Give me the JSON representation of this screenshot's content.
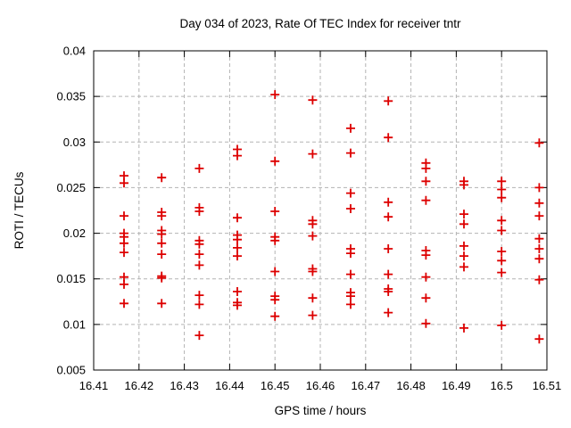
{
  "background_color": "#ffffff",
  "chart_data": {
    "type": "scatter",
    "title": "Day 034 of 2023, Rate Of TEC Index for receiver tntr",
    "xlabel": "GPS time / hours",
    "ylabel": "ROTI / TECUs",
    "xlim": [
      16.41,
      16.51
    ],
    "ylim": [
      0.005,
      0.04
    ],
    "xticks": [
      16.41,
      16.42,
      16.43,
      16.44,
      16.45,
      16.46,
      16.47,
      16.48,
      16.49,
      16.5,
      16.51
    ],
    "xtick_labels": [
      "16.41",
      "16.42",
      "16.43",
      "16.44",
      "16.45",
      "16.46",
      "16.47",
      "16.48",
      "16.49",
      "16.5",
      "16.51"
    ],
    "yticks": [
      0.005,
      0.01,
      0.015,
      0.02,
      0.025,
      0.03,
      0.035,
      0.04
    ],
    "ytick_labels": [
      "0.005",
      "0.01",
      "0.015",
      "0.02",
      "0.025",
      "0.03",
      "0.035",
      "0.04"
    ],
    "grid": true,
    "legend": "none",
    "marker": "plus",
    "marker_color": "#dd0000",
    "grid_color": "#b3b3b3",
    "border_color": "#000000",
    "series": [
      {
        "name": "ROTI",
        "points": [
          [
            16.4167,
            0.0263
          ],
          [
            16.4167,
            0.0255
          ],
          [
            16.4167,
            0.0219
          ],
          [
            16.4167,
            0.02
          ],
          [
            16.4167,
            0.0196
          ],
          [
            16.4167,
            0.0189
          ],
          [
            16.4167,
            0.0179
          ],
          [
            16.4167,
            0.0152
          ],
          [
            16.4167,
            0.0144
          ],
          [
            16.4167,
            0.0123
          ],
          [
            16.425,
            0.0261
          ],
          [
            16.425,
            0.0223
          ],
          [
            16.425,
            0.0219
          ],
          [
            16.425,
            0.0203
          ],
          [
            16.425,
            0.0199
          ],
          [
            16.425,
            0.0189
          ],
          [
            16.425,
            0.0177
          ],
          [
            16.425,
            0.0153
          ],
          [
            16.425,
            0.0151
          ],
          [
            16.425,
            0.0123
          ],
          [
            16.4333,
            0.0271
          ],
          [
            16.4333,
            0.0228
          ],
          [
            16.4333,
            0.0224
          ],
          [
            16.4333,
            0.0192
          ],
          [
            16.4333,
            0.0188
          ],
          [
            16.4333,
            0.0177
          ],
          [
            16.4333,
            0.0165
          ],
          [
            16.4333,
            0.0132
          ],
          [
            16.4333,
            0.0122
          ],
          [
            16.4333,
            0.0088
          ],
          [
            16.4417,
            0.0292
          ],
          [
            16.4417,
            0.0285
          ],
          [
            16.4417,
            0.0217
          ],
          [
            16.4417,
            0.0198
          ],
          [
            16.4417,
            0.0193
          ],
          [
            16.4417,
            0.0184
          ],
          [
            16.4417,
            0.0175
          ],
          [
            16.4417,
            0.0136
          ],
          [
            16.4417,
            0.0124
          ],
          [
            16.4417,
            0.0121
          ],
          [
            16.45,
            0.0352
          ],
          [
            16.45,
            0.0279
          ],
          [
            16.45,
            0.0224
          ],
          [
            16.45,
            0.0196
          ],
          [
            16.45,
            0.0192
          ],
          [
            16.45,
            0.0158
          ],
          [
            16.45,
            0.0131
          ],
          [
            16.45,
            0.0127
          ],
          [
            16.45,
            0.0109
          ],
          [
            16.4583,
            0.0346
          ],
          [
            16.4583,
            0.0287
          ],
          [
            16.4583,
            0.0214
          ],
          [
            16.4583,
            0.021
          ],
          [
            16.4583,
            0.0197
          ],
          [
            16.4583,
            0.0161
          ],
          [
            16.4583,
            0.0158
          ],
          [
            16.4583,
            0.0129
          ],
          [
            16.4583,
            0.011
          ],
          [
            16.4667,
            0.0315
          ],
          [
            16.4667,
            0.0288
          ],
          [
            16.4667,
            0.0244
          ],
          [
            16.4667,
            0.0227
          ],
          [
            16.4667,
            0.0183
          ],
          [
            16.4667,
            0.0178
          ],
          [
            16.4667,
            0.0155
          ],
          [
            16.4667,
            0.0135
          ],
          [
            16.4667,
            0.0131
          ],
          [
            16.4667,
            0.0122
          ],
          [
            16.475,
            0.0345
          ],
          [
            16.475,
            0.0305
          ],
          [
            16.475,
            0.0234
          ],
          [
            16.475,
            0.0218
          ],
          [
            16.475,
            0.0183
          ],
          [
            16.475,
            0.0155
          ],
          [
            16.475,
            0.0139
          ],
          [
            16.475,
            0.0136
          ],
          [
            16.475,
            0.0113
          ],
          [
            16.4833,
            0.0277
          ],
          [
            16.4833,
            0.0271
          ],
          [
            16.4833,
            0.0257
          ],
          [
            16.4833,
            0.0236
          ],
          [
            16.4833,
            0.0181
          ],
          [
            16.4833,
            0.0176
          ],
          [
            16.4833,
            0.0152
          ],
          [
            16.4833,
            0.0129
          ],
          [
            16.4833,
            0.0101
          ],
          [
            16.4917,
            0.0257
          ],
          [
            16.4917,
            0.0253
          ],
          [
            16.4917,
            0.0221
          ],
          [
            16.4917,
            0.021
          ],
          [
            16.4917,
            0.0186
          ],
          [
            16.4917,
            0.0175
          ],
          [
            16.4917,
            0.0163
          ],
          [
            16.4917,
            0.0096
          ],
          [
            16.5,
            0.0257
          ],
          [
            16.5,
            0.0248
          ],
          [
            16.5,
            0.0239
          ],
          [
            16.5,
            0.0214
          ],
          [
            16.5,
            0.0203
          ],
          [
            16.5,
            0.018
          ],
          [
            16.5,
            0.017
          ],
          [
            16.5,
            0.0157
          ],
          [
            16.5,
            0.0099
          ],
          [
            16.5083,
            0.0299
          ],
          [
            16.5083,
            0.025
          ],
          [
            16.5083,
            0.0233
          ],
          [
            16.5083,
            0.0219
          ],
          [
            16.5083,
            0.0194
          ],
          [
            16.5083,
            0.0183
          ],
          [
            16.5083,
            0.0172
          ],
          [
            16.5083,
            0.0149
          ],
          [
            16.5083,
            0.0084
          ]
        ]
      }
    ]
  }
}
